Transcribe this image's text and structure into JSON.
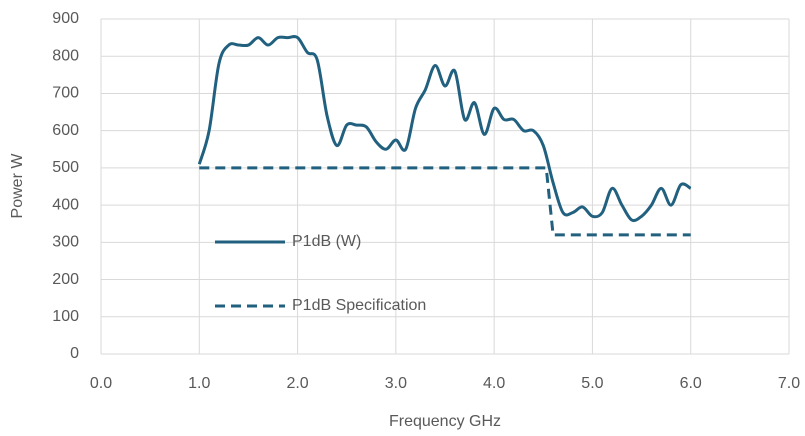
{
  "chart_data": {
    "type": "line",
    "x_label": "Frequency GHz",
    "y_label": "Power W",
    "series": [
      {
        "name": "P1dB (W)",
        "color": "#22607f",
        "dash": false,
        "x": [
          1.0,
          1.1,
          1.2,
          1.3,
          1.4,
          1.5,
          1.6,
          1.7,
          1.8,
          1.9,
          2.0,
          2.1,
          2.2,
          2.3,
          2.4,
          2.5,
          2.6,
          2.7,
          2.8,
          2.9,
          3.0,
          3.1,
          3.2,
          3.3,
          3.4,
          3.5,
          3.6,
          3.7,
          3.8,
          3.9,
          4.0,
          4.1,
          4.2,
          4.3,
          4.4,
          4.5,
          4.6,
          4.7,
          4.8,
          4.9,
          5.0,
          5.1,
          5.2,
          5.3,
          5.4,
          5.5,
          5.6,
          5.7,
          5.8,
          5.9,
          6.0
        ],
        "values": [
          510,
          600,
          780,
          830,
          830,
          830,
          850,
          830,
          850,
          850,
          850,
          810,
          790,
          640,
          560,
          615,
          615,
          610,
          570,
          550,
          575,
          550,
          660,
          710,
          775,
          720,
          760,
          630,
          675,
          590,
          660,
          630,
          630,
          600,
          600,
          560,
          460,
          380,
          380,
          395,
          370,
          380,
          445,
          400,
          360,
          370,
          400,
          445,
          400,
          455,
          445
        ]
      },
      {
        "name": "P1dB Specification",
        "color": "#22607f",
        "dash": true,
        "x": [
          1.0,
          4.53,
          4.6,
          6.0
        ],
        "values": [
          500,
          500,
          320,
          320
        ]
      }
    ],
    "xlim": [
      0,
      7
    ],
    "xticks": [
      {
        "value": 0,
        "label": "0.0"
      },
      {
        "value": 1,
        "label": "1.0"
      },
      {
        "value": 2,
        "label": "2.0"
      },
      {
        "value": 3,
        "label": "3.0"
      },
      {
        "value": 4,
        "label": "4.0"
      },
      {
        "value": 5,
        "label": "5.0"
      },
      {
        "value": 6,
        "label": "6.0"
      },
      {
        "value": 7,
        "label": "7.0"
      }
    ],
    "ylim": [
      0,
      900
    ],
    "yticks": [
      0,
      100,
      200,
      300,
      400,
      500,
      600,
      700,
      800,
      900
    ],
    "grid": true,
    "legend": "left"
  }
}
